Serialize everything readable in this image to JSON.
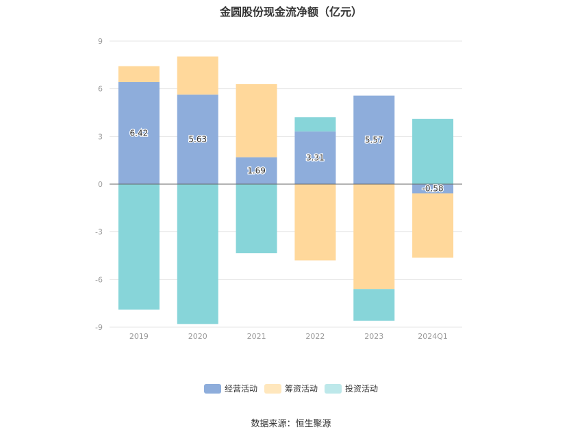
{
  "title": "金圆股份现金流净额（亿元）",
  "source": "数据来源：恒生聚源",
  "colors": {
    "经营活动": "#8eaddb",
    "筹资活动": "#ffd89b",
    "投资活动": "#87d5d9",
    "axis": "#666666",
    "grid": "#e6e6e6",
    "tick": "#999999"
  },
  "chart_data": {
    "type": "bar",
    "stacked": true,
    "title": "金圆股份现金流净额（亿元）",
    "categories": [
      "2019",
      "2020",
      "2021",
      "2022",
      "2023",
      "2024Q1"
    ],
    "series": [
      {
        "name": "经营活动",
        "values": [
          6.42,
          5.63,
          1.69,
          3.31,
          5.57,
          -0.58
        ]
      },
      {
        "name": "筹资活动",
        "values": [
          1.0,
          2.4,
          4.6,
          -4.8,
          -6.6,
          -4.05
        ]
      },
      {
        "name": "投资活动",
        "values": [
          -7.9,
          -8.8,
          -4.35,
          0.9,
          -2.0,
          4.1
        ]
      }
    ],
    "data_labels": [
      "6.42",
      "5.63",
      "1.69",
      "3.31",
      "5.57",
      "-0.58"
    ],
    "yticks": [
      "9",
      "6",
      "3",
      "0",
      "-3",
      "-6",
      "-9"
    ],
    "ylim": [
      -9,
      9
    ],
    "grid": true,
    "legend": "bottom"
  }
}
